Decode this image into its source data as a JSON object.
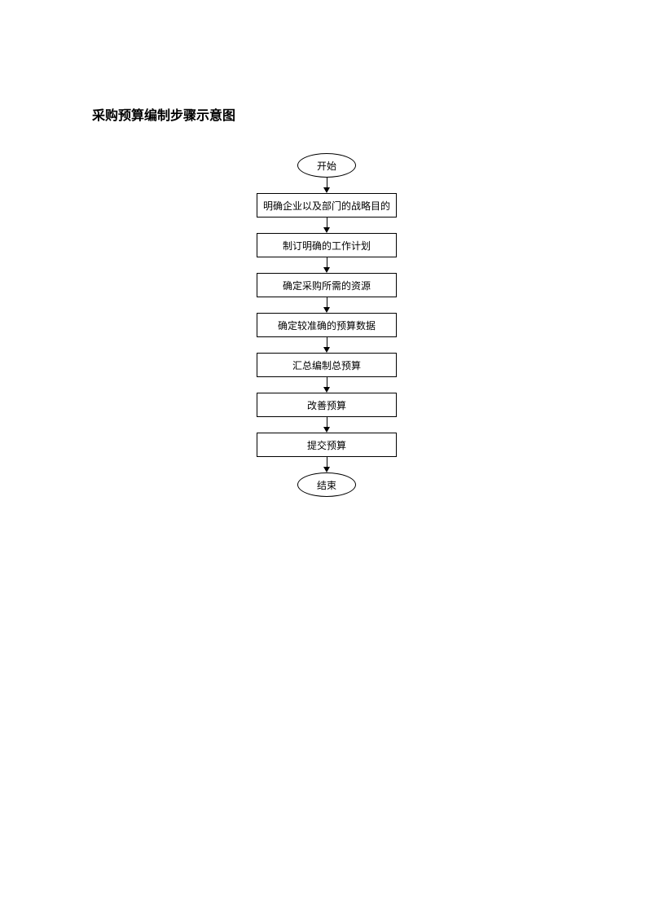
{
  "title": "采购预算编制步骤示意图",
  "flowchart": {
    "type": "flowchart",
    "direction": "vertical",
    "background_color": "#ffffff",
    "border_color": "#000000",
    "text_color": "#000000",
    "node_fontsize": 12,
    "title_fontsize": 16,
    "title_fontweight": "bold",
    "terminal_width": 72,
    "terminal_height": 30,
    "process_width": 172,
    "process_height": 30,
    "arrow_length": 19,
    "arrow_color": "#000000",
    "nodes": [
      {
        "id": "start",
        "type": "terminal",
        "label": "开始"
      },
      {
        "id": "step1",
        "type": "process",
        "label": "明确企业以及部门的战略目的"
      },
      {
        "id": "step2",
        "type": "process",
        "label": "制订明确的工作计划"
      },
      {
        "id": "step3",
        "type": "process",
        "label": "确定采购所需的资源"
      },
      {
        "id": "step4",
        "type": "process",
        "label": "确定较准确的预算数据"
      },
      {
        "id": "step5",
        "type": "process",
        "label": "汇总编制总预算"
      },
      {
        "id": "step6",
        "type": "process",
        "label": "改善预算"
      },
      {
        "id": "step7",
        "type": "process",
        "label": "提交预算"
      },
      {
        "id": "end",
        "type": "terminal",
        "label": "结束"
      }
    ],
    "edges": [
      {
        "from": "start",
        "to": "step1"
      },
      {
        "from": "step1",
        "to": "step2"
      },
      {
        "from": "step2",
        "to": "step3"
      },
      {
        "from": "step3",
        "to": "step4"
      },
      {
        "from": "step4",
        "to": "step5"
      },
      {
        "from": "step5",
        "to": "step6"
      },
      {
        "from": "step6",
        "to": "step7"
      },
      {
        "from": "step7",
        "to": "end"
      }
    ]
  }
}
